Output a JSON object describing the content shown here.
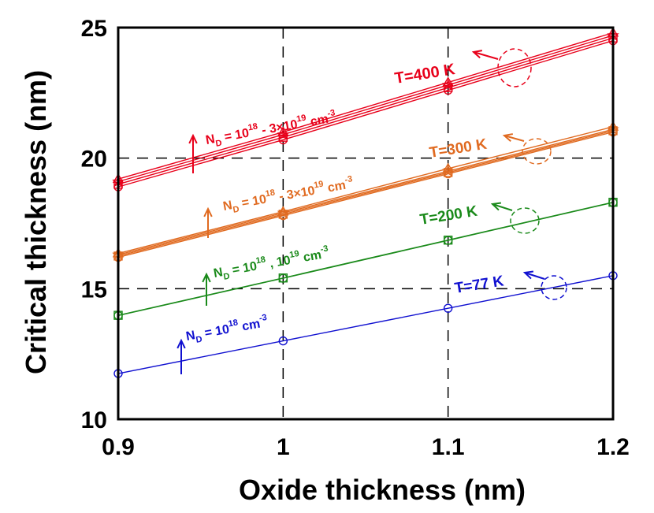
{
  "chart_data": {
    "type": "line",
    "title": "",
    "xlabel": "Oxide thickness (nm)",
    "ylabel": "Critical thickness (nm)",
    "xlim": [
      0.9,
      1.2
    ],
    "ylim": [
      10,
      25
    ],
    "xticks": [
      0.9,
      1.0,
      1.1,
      1.2
    ],
    "xtick_labels": [
      "0.9",
      "1",
      "1.1",
      "1.2"
    ],
    "yticks": [
      10,
      15,
      20,
      25
    ],
    "ytick_labels": [
      "10",
      "15",
      "20",
      "25"
    ],
    "grid": true,
    "x": [
      0.9,
      1.0,
      1.1,
      1.2
    ],
    "series": [
      {
        "name": "T=400 K, ND=1e18",
        "group": "T400",
        "color": "#e8001a",
        "marker": "circle",
        "values": [
          18.9,
          20.7,
          22.6,
          24.5
        ]
      },
      {
        "name": "T=400 K, ND=1e19",
        "group": "T400",
        "color": "#e8001a",
        "marker": "square",
        "values": [
          19.0,
          20.8,
          22.7,
          24.6
        ]
      },
      {
        "name": "T=400 K, ND=2e19",
        "group": "T400",
        "color": "#e8001a",
        "marker": "star",
        "values": [
          19.1,
          20.9,
          22.8,
          24.7
        ]
      },
      {
        "name": "T=400 K, ND=3e19",
        "group": "T400",
        "color": "#e8001a",
        "marker": "triangle",
        "values": [
          19.2,
          21.0,
          22.9,
          24.8
        ]
      },
      {
        "name": "T=300 K, ND=1e18",
        "group": "T300",
        "color": "#e06a20",
        "marker": "circle",
        "values": [
          16.2,
          17.8,
          19.4,
          21.0
        ]
      },
      {
        "name": "T=300 K, ND=1e19",
        "group": "T300",
        "color": "#e06a20",
        "marker": "square",
        "values": [
          16.25,
          17.85,
          19.45,
          21.05
        ]
      },
      {
        "name": "T=300 K, ND=2e19",
        "group": "T300",
        "color": "#e06a20",
        "marker": "star",
        "values": [
          16.3,
          17.9,
          19.5,
          21.1
        ]
      },
      {
        "name": "T=300 K, ND=3e19",
        "group": "T300",
        "color": "#e06a20",
        "marker": "triangle",
        "values": [
          16.35,
          17.95,
          19.6,
          21.2
        ]
      },
      {
        "name": "T=200 K, ND=1e18",
        "group": "T200",
        "color": "#1a8a1a",
        "marker": "circle",
        "values": [
          13.97,
          15.4,
          16.85,
          18.3
        ]
      },
      {
        "name": "T=200 K, ND=1e19",
        "group": "T200",
        "color": "#1a8a1a",
        "marker": "square",
        "values": [
          13.98,
          15.41,
          16.86,
          18.31
        ]
      },
      {
        "name": "T=77 K, ND=1e18",
        "group": "T77",
        "color": "#1010d0",
        "marker": "circle",
        "values": [
          11.75,
          13.0,
          14.25,
          15.5
        ]
      }
    ],
    "annotations": [
      {
        "name": "T400",
        "text": "T=400 K",
        "color": "#e8001a"
      },
      {
        "name": "T300",
        "text": "T=300 K",
        "color": "#e06a20"
      },
      {
        "name": "T200",
        "text": "T=200 K",
        "color": "#1a8a1a"
      },
      {
        "name": "T77",
        "text": "T=77 K",
        "color": "#1010d0"
      }
    ],
    "doping_labels": [
      {
        "name": "nd-400",
        "color": "#e8001a",
        "n": "N",
        "sub": "D",
        "eq": " = 10",
        "sup1": "18",
        "mid": " - 3×10",
        "sup2": "19",
        "unit": " cm",
        "sup3": "-3"
      },
      {
        "name": "nd-300",
        "color": "#e06a20",
        "n": "N",
        "sub": "D",
        "eq": " = 10",
        "sup1": "18",
        "mid": " - 3×10",
        "sup2": "19",
        "unit": " cm",
        "sup3": "-3"
      },
      {
        "name": "nd-200",
        "color": "#1a8a1a",
        "n": "N",
        "sub": "D",
        "eq": " = 10",
        "sup1": "18",
        "mid": " , 10",
        "sup2": "19",
        "unit": " cm",
        "sup3": "-3"
      },
      {
        "name": "nd-77",
        "color": "#1010d0",
        "n": "N",
        "sub": "D",
        "eq": " = 10",
        "sup1": "18",
        "mid": "",
        "sup2": "",
        "unit": " cm",
        "sup3": "-3"
      }
    ]
  }
}
